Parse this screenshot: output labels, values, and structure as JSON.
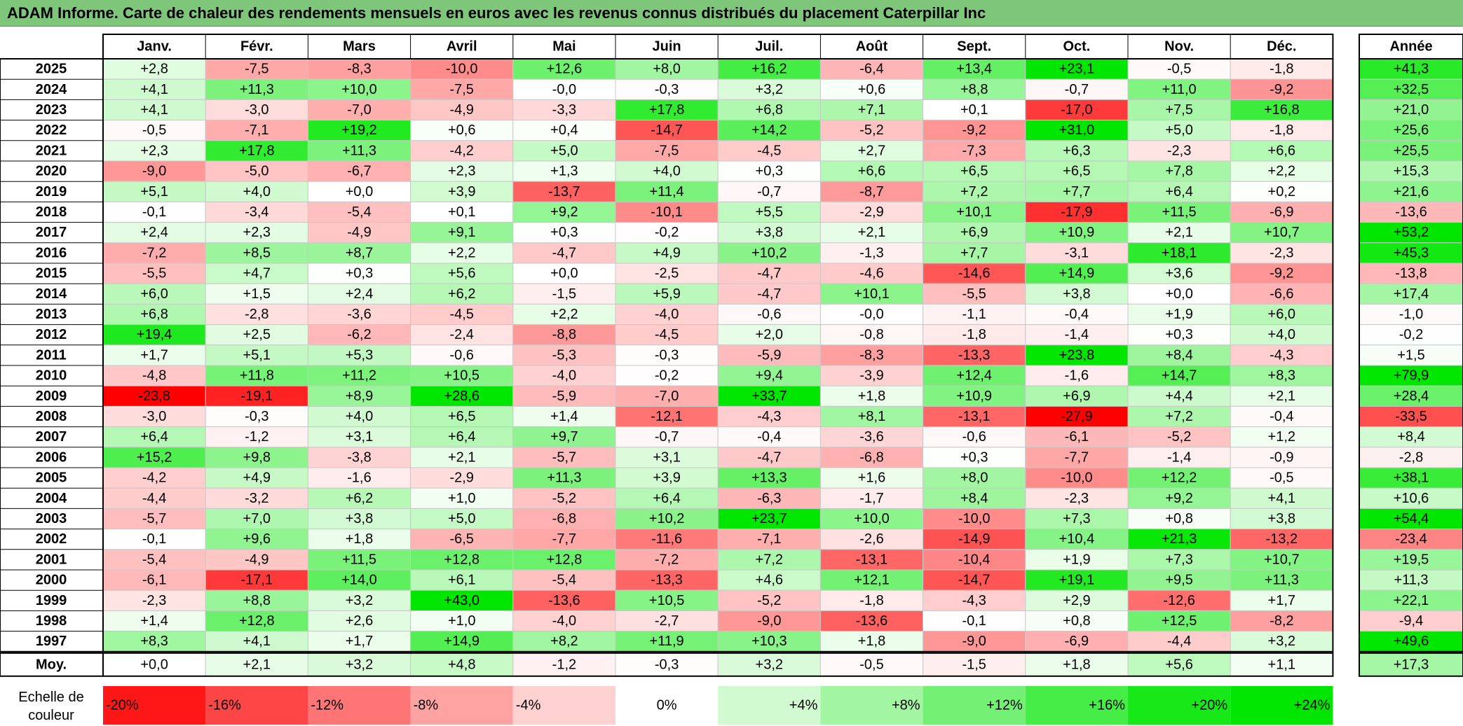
{
  "title": "ADAM Informe. Carte de chaleur des rendements mensuels en euros avec les revenus connus distribués du placement Caterpillar Inc",
  "chart_data": {
    "type": "heatmap",
    "columns": [
      "Janv.",
      "Févr.",
      "Mars",
      "Avril",
      "Mai",
      "Juin",
      "Juil.",
      "Août",
      "Sept.",
      "Oct.",
      "Nov.",
      "Déc."
    ],
    "annual_column": "Année",
    "rows": [
      {
        "year": "2025",
        "values": [
          "+2,8",
          "-7,5",
          "-8,3",
          "-10,0",
          "+12,6",
          "+8,0",
          "+16,2",
          "-6,4",
          "+13,4",
          "+23,1",
          "-0,5",
          "-1,8"
        ],
        "annual": "+41,3"
      },
      {
        "year": "2024",
        "values": [
          "+4,1",
          "+11,3",
          "+10,0",
          "-7,5",
          "-0,0",
          "-0,3",
          "+3,2",
          "+0,6",
          "+8,8",
          "-0,7",
          "+11,0",
          "-9,2"
        ],
        "annual": "+32,5"
      },
      {
        "year": "2023",
        "values": [
          "+4,1",
          "-3,0",
          "-7,0",
          "-4,9",
          "-3,3",
          "+17,8",
          "+6,8",
          "+7,1",
          "+0,1",
          "-17,0",
          "+7,5",
          "+16,8"
        ],
        "annual": "+21,0"
      },
      {
        "year": "2022",
        "values": [
          "-0,5",
          "-7,1",
          "+19,2",
          "+0,6",
          "+0,4",
          "-14,7",
          "+14,2",
          "-5,2",
          "-9,2",
          "+31,0",
          "+5,0",
          "-1,8"
        ],
        "annual": "+25,6"
      },
      {
        "year": "2021",
        "values": [
          "+2,3",
          "+17,8",
          "+11,3",
          "-4,2",
          "+5,0",
          "-7,5",
          "-4,5",
          "+2,7",
          "-7,3",
          "+6,3",
          "-2,3",
          "+6,6"
        ],
        "annual": "+25,5"
      },
      {
        "year": "2020",
        "values": [
          "-9,0",
          "-5,0",
          "-6,7",
          "+2,3",
          "+1,3",
          "+4,0",
          "+0,3",
          "+6,6",
          "+6,5",
          "+6,5",
          "+7,8",
          "+2,2"
        ],
        "annual": "+15,3"
      },
      {
        "year": "2019",
        "values": [
          "+5,1",
          "+4,0",
          "+0,0",
          "+3,9",
          "-13,7",
          "+11,4",
          "-0,7",
          "-8,7",
          "+7,2",
          "+7,7",
          "+6,4",
          "+0,2"
        ],
        "annual": "+21,6"
      },
      {
        "year": "2018",
        "values": [
          "-0,1",
          "-3,4",
          "-5,4",
          "+0,1",
          "+9,2",
          "-10,1",
          "+5,5",
          "-2,9",
          "+10,1",
          "-17,9",
          "+11,5",
          "-6,9"
        ],
        "annual": "-13,6"
      },
      {
        "year": "2017",
        "values": [
          "+2,4",
          "+2,3",
          "-4,9",
          "+9,1",
          "+0,3",
          "-0,2",
          "+3,8",
          "+2,1",
          "+6,9",
          "+10,9",
          "+2,1",
          "+10,7"
        ],
        "annual": "+53,2"
      },
      {
        "year": "2016",
        "values": [
          "-7,2",
          "+8,5",
          "+8,7",
          "+2,2",
          "-4,7",
          "+4,9",
          "+10,2",
          "-1,3",
          "+7,7",
          "-3,1",
          "+18,1",
          "-2,3"
        ],
        "annual": "+45,3"
      },
      {
        "year": "2015",
        "values": [
          "-5,5",
          "+4,7",
          "+0,3",
          "+5,6",
          "+0,0",
          "-2,5",
          "-4,7",
          "-4,6",
          "-14,6",
          "+14,9",
          "+3,6",
          "-9,2"
        ],
        "annual": "-13,8"
      },
      {
        "year": "2014",
        "values": [
          "+6,0",
          "+1,5",
          "+2,4",
          "+6,2",
          "-1,5",
          "+5,9",
          "-4,7",
          "+10,1",
          "-5,5",
          "+3,8",
          "+0,0",
          "-6,6"
        ],
        "annual": "+17,4"
      },
      {
        "year": "2013",
        "values": [
          "+6,8",
          "-2,8",
          "-3,6",
          "-4,5",
          "+2,2",
          "-4,0",
          "-0,6",
          "-0,0",
          "-1,1",
          "-0,4",
          "+1,9",
          "+6,0"
        ],
        "annual": "-1,0"
      },
      {
        "year": "2012",
        "values": [
          "+19,4",
          "+2,5",
          "-6,2",
          "-2,4",
          "-8,8",
          "-4,5",
          "+2,0",
          "-0,8",
          "-1,8",
          "-1,4",
          "+0,3",
          "+4,0"
        ],
        "annual": "-0,2"
      },
      {
        "year": "2011",
        "values": [
          "+1,7",
          "+5,1",
          "+5,3",
          "-0,6",
          "-5,3",
          "-0,3",
          "-5,9",
          "-8,3",
          "-13,3",
          "+23,8",
          "+8,4",
          "-4,3"
        ],
        "annual": "+1,5"
      },
      {
        "year": "2010",
        "values": [
          "-4,8",
          "+11,8",
          "+11,2",
          "+10,5",
          "-4,0",
          "-0,2",
          "+9,4",
          "-3,9",
          "+12,4",
          "-1,6",
          "+14,7",
          "+8,3"
        ],
        "annual": "+79,9"
      },
      {
        "year": "2009",
        "values": [
          "-23,8",
          "-19,1",
          "+8,9",
          "+28,6",
          "-5,9",
          "-7,0",
          "+33,7",
          "+1,8",
          "+10,9",
          "+6,9",
          "+4,4",
          "+2,1"
        ],
        "annual": "+28,4"
      },
      {
        "year": "2008",
        "values": [
          "-3,0",
          "-0,3",
          "+4,0",
          "+6,5",
          "+1,4",
          "-12,1",
          "-4,3",
          "+8,1",
          "-13,1",
          "-27,9",
          "+7,2",
          "-0,4"
        ],
        "annual": "-33,5"
      },
      {
        "year": "2007",
        "values": [
          "+6,4",
          "-1,2",
          "+3,1",
          "+6,4",
          "+9,7",
          "-0,7",
          "-0,4",
          "-3,6",
          "-0,6",
          "-6,1",
          "-5,2",
          "+1,2"
        ],
        "annual": "+8,4"
      },
      {
        "year": "2006",
        "values": [
          "+15,2",
          "+9,8",
          "-3,8",
          "+2,1",
          "-5,7",
          "+3,1",
          "-4,7",
          "-6,8",
          "+0,3",
          "-7,7",
          "-1,4",
          "-0,9"
        ],
        "annual": "-2,8"
      },
      {
        "year": "2005",
        "values": [
          "-4,2",
          "+4,9",
          "-1,6",
          "-2,9",
          "+11,3",
          "+3,9",
          "+13,3",
          "+1,6",
          "+8,0",
          "-10,0",
          "+12,2",
          "-0,5"
        ],
        "annual": "+38,1"
      },
      {
        "year": "2004",
        "values": [
          "-4,4",
          "-3,2",
          "+6,2",
          "+1,0",
          "-5,2",
          "+6,4",
          "-6,3",
          "-1,7",
          "+8,4",
          "-2,3",
          "+9,2",
          "+4,1"
        ],
        "annual": "+10,6"
      },
      {
        "year": "2003",
        "values": [
          "-5,7",
          "+7,0",
          "+3,8",
          "+5,0",
          "-6,8",
          "+10,2",
          "+23,7",
          "+10,0",
          "-10,0",
          "+7,3",
          "+0,8",
          "+3,8"
        ],
        "annual": "+54,4"
      },
      {
        "year": "2002",
        "values": [
          "-0,1",
          "+9,6",
          "+1,8",
          "-6,5",
          "-7,7",
          "-11,6",
          "-7,1",
          "-2,6",
          "-14,9",
          "+10,4",
          "+21,3",
          "-13,2"
        ],
        "annual": "-23,4"
      },
      {
        "year": "2001",
        "values": [
          "-5,4",
          "-4,9",
          "+11,5",
          "+12,8",
          "+12,8",
          "-7,2",
          "+7,2",
          "-13,1",
          "-10,4",
          "+1,9",
          "+7,3",
          "+10,7"
        ],
        "annual": "+19,5"
      },
      {
        "year": "2000",
        "values": [
          "-6,1",
          "-17,1",
          "+14,0",
          "+6,1",
          "-5,4",
          "-13,3",
          "+4,6",
          "+12,1",
          "-14,7",
          "+19,1",
          "+9,5",
          "+11,3"
        ],
        "annual": "+11,3"
      },
      {
        "year": "1999",
        "values": [
          "-2,3",
          "+8,8",
          "+3,2",
          "+43,0",
          "-13,6",
          "+10,5",
          "-5,2",
          "-1,8",
          "-4,3",
          "+2,9",
          "-12,6",
          "+1,7"
        ],
        "annual": "+22,1"
      },
      {
        "year": "1998",
        "values": [
          "+1,4",
          "+12,8",
          "+2,6",
          "+1,0",
          "-4,0",
          "-2,7",
          "-9,0",
          "-13,6",
          "-0,1",
          "+0,8",
          "+12,5",
          "-8,2"
        ],
        "annual": "-9,4"
      },
      {
        "year": "1997",
        "values": [
          "+8,3",
          "+4,1",
          "+1,7",
          "+14,9",
          "+8,2",
          "+11,9",
          "+10,3",
          "+1,8",
          "-9,0",
          "-6,9",
          "-4,4",
          "+3,2"
        ],
        "annual": "+49,6"
      }
    ],
    "average": {
      "label": "Moy.",
      "values": [
        "+0,0",
        "+2,1",
        "+3,2",
        "+4,8",
        "-1,2",
        "-0,3",
        "+3,2",
        "-0,5",
        "-1,5",
        "+1,8",
        "+5,6",
        "+1,1"
      ],
      "annual": "+17,3"
    },
    "scale": {
      "label_line1": "Echelle de",
      "label_line2": "couleur",
      "steps": [
        "-20%",
        "-16%",
        "-12%",
        "-8%",
        "-4%",
        "0%",
        "+4%",
        "+8%",
        "+12%",
        "+16%",
        "+20%",
        "+24%"
      ]
    }
  },
  "colors": {
    "negative_max": "#ff0000",
    "neutral": "#ffffff",
    "positive_max": "#00e600",
    "title_bar": "#7dc67a"
  }
}
